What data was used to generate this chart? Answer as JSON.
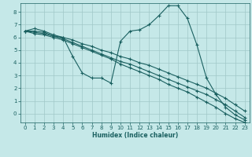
{
  "xlabel": "Humidex (Indice chaleur)",
  "bg_color": "#c5e8e8",
  "grid_color": "#a0c8c8",
  "line_color": "#1a6060",
  "xlim": [
    -0.5,
    23.5
  ],
  "ylim": [
    -0.7,
    8.7
  ],
  "xticks": [
    0,
    1,
    2,
    3,
    4,
    5,
    6,
    7,
    8,
    9,
    10,
    11,
    12,
    13,
    14,
    15,
    16,
    17,
    18,
    19,
    20,
    21,
    22,
    23
  ],
  "yticks": [
    0,
    1,
    2,
    3,
    4,
    5,
    6,
    7,
    8
  ],
  "series": [
    {
      "x": [
        0,
        1,
        2,
        3,
        4,
        5,
        6,
        7,
        8,
        9,
        10,
        11,
        12,
        13,
        14,
        15,
        16,
        17,
        18,
        19,
        20,
        21,
        22,
        23
      ],
      "y": [
        6.5,
        6.7,
        6.5,
        6.2,
        6.0,
        4.5,
        3.2,
        2.8,
        2.8,
        2.4,
        5.7,
        6.5,
        6.6,
        7.0,
        7.7,
        8.5,
        8.5,
        7.5,
        5.4,
        2.8,
        1.5,
        0.5,
        -0.1,
        -0.5
      ]
    },
    {
      "x": [
        0,
        1,
        2,
        3,
        4,
        5,
        6,
        7,
        8,
        9,
        10,
        11,
        12,
        13,
        14,
        15,
        16,
        17,
        18,
        19,
        20,
        21,
        22,
        23
      ],
      "y": [
        6.5,
        6.5,
        6.4,
        6.1,
        6.0,
        5.8,
        5.5,
        5.3,
        5.0,
        4.8,
        4.5,
        4.3,
        4.0,
        3.8,
        3.5,
        3.2,
        2.9,
        2.6,
        2.3,
        2.0,
        1.6,
        1.2,
        0.7,
        0.2
      ]
    },
    {
      "x": [
        0,
        1,
        2,
        3,
        4,
        5,
        6,
        7,
        8,
        9,
        10,
        11,
        12,
        13,
        14,
        15,
        16,
        17,
        18,
        19,
        20,
        21,
        22,
        23
      ],
      "y": [
        6.5,
        6.4,
        6.3,
        6.1,
        5.9,
        5.6,
        5.3,
        5.0,
        4.7,
        4.4,
        4.1,
        3.9,
        3.6,
        3.3,
        3.0,
        2.7,
        2.4,
        2.1,
        1.8,
        1.5,
        1.1,
        0.7,
        0.2,
        -0.3
      ]
    },
    {
      "x": [
        0,
        1,
        2,
        3,
        4,
        5,
        6,
        7,
        8,
        9,
        10,
        11,
        12,
        13,
        14,
        15,
        16,
        17,
        18,
        19,
        20,
        21,
        22,
        23
      ],
      "y": [
        6.5,
        6.3,
        6.2,
        6.0,
        5.8,
        5.5,
        5.2,
        4.9,
        4.6,
        4.3,
        3.9,
        3.6,
        3.3,
        3.0,
        2.7,
        2.3,
        2.0,
        1.7,
        1.3,
        0.9,
        0.5,
        0.0,
        -0.4,
        -0.7
      ]
    }
  ]
}
